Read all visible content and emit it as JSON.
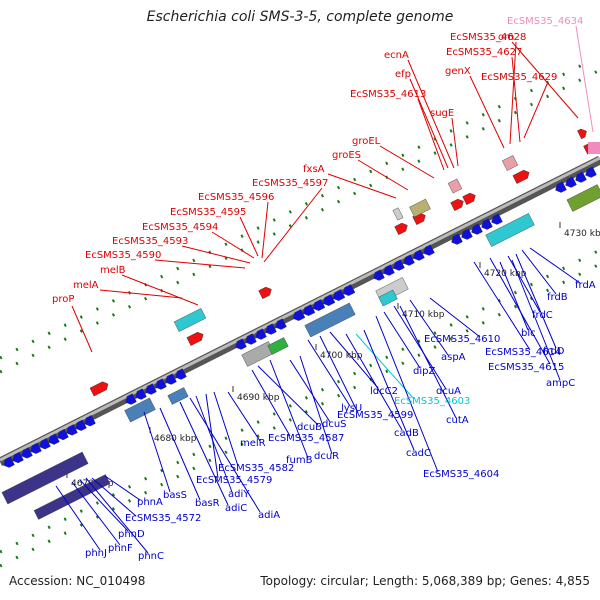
{
  "title": "Escherichia coli SMS-3-5, complete genome",
  "footer": {
    "accession": "Accession: NC_010498",
    "topology": "Topology: circular; Length: 5,068,389 bp; Genes: 4,855"
  },
  "colors": {
    "forward_label": "#dd0000",
    "reverse_label": "#0000cc",
    "highlight_cyan": "#00c8d8",
    "highlight_pink": "#f08cc0",
    "tick_green": "#1a7a1a",
    "backbone": "#777777"
  },
  "ticks": [
    {
      "label": "4670 kbp"
    },
    {
      "label": "4680 kbp"
    },
    {
      "label": "4690 kbp"
    },
    {
      "label": "4700 kbp"
    },
    {
      "label": "4710 kbp"
    },
    {
      "label": "4720 kbp"
    },
    {
      "label": "4730 kbp"
    }
  ],
  "forward_genes": [
    {
      "label": "proP"
    },
    {
      "label": "melA"
    },
    {
      "label": "melB"
    },
    {
      "label": "EcSMS35_4590"
    },
    {
      "label": "EcSMS35_4593"
    },
    {
      "label": "EcSMS35_4594"
    },
    {
      "label": "EcSMS35_4595"
    },
    {
      "label": "EcSMS35_4596"
    },
    {
      "label": "EcSMS35_4597"
    },
    {
      "label": "fxsA"
    },
    {
      "label": "groES"
    },
    {
      "label": "groEL"
    },
    {
      "label": "EcSMS35_4613"
    },
    {
      "label": "efp"
    },
    {
      "label": "ecnA"
    },
    {
      "label": "sugE"
    },
    {
      "label": "genX"
    },
    {
      "label": "EcSMS35_4628"
    },
    {
      "label": "EcSMS35_4627"
    },
    {
      "label": "EcSMS35_4629"
    },
    {
      "label": "orn"
    },
    {
      "label": "EcSMS35_4634"
    }
  ],
  "reverse_genes": [
    {
      "label": "phnJ"
    },
    {
      "label": "phnF"
    },
    {
      "label": "phnC"
    },
    {
      "label": "phnD"
    },
    {
      "label": "EcSMS35_4572"
    },
    {
      "label": "phnA"
    },
    {
      "label": "basS"
    },
    {
      "label": "basR"
    },
    {
      "label": "adiC"
    },
    {
      "label": "adiA"
    },
    {
      "label": "adiY"
    },
    {
      "label": "EcSMS35_4579"
    },
    {
      "label": "EcSMS35_4582"
    },
    {
      "label": "melR"
    },
    {
      "label": "EcSMS35_4587"
    },
    {
      "label": "dcuB"
    },
    {
      "label": "fumB"
    },
    {
      "label": "dcuS"
    },
    {
      "label": "dcuR"
    },
    {
      "label": "lysU"
    },
    {
      "label": "EcSMS35_4599"
    },
    {
      "label": "ldcC2"
    },
    {
      "label": "cadB"
    },
    {
      "label": "EcSMS35_4603"
    },
    {
      "label": "cadC"
    },
    {
      "label": "EcSMS35_4604"
    },
    {
      "label": "dipZ"
    },
    {
      "label": "dcuA"
    },
    {
      "label": "cutA"
    },
    {
      "label": "aspA"
    },
    {
      "label": "EcSMS35_4610"
    },
    {
      "label": "EcSMS35_4614"
    },
    {
      "label": "EcSMS35_4615"
    },
    {
      "label": "blc"
    },
    {
      "label": "frdC"
    },
    {
      "label": "frdD"
    },
    {
      "label": "frdB"
    },
    {
      "label": "ampC"
    },
    {
      "label": "frdA"
    }
  ]
}
